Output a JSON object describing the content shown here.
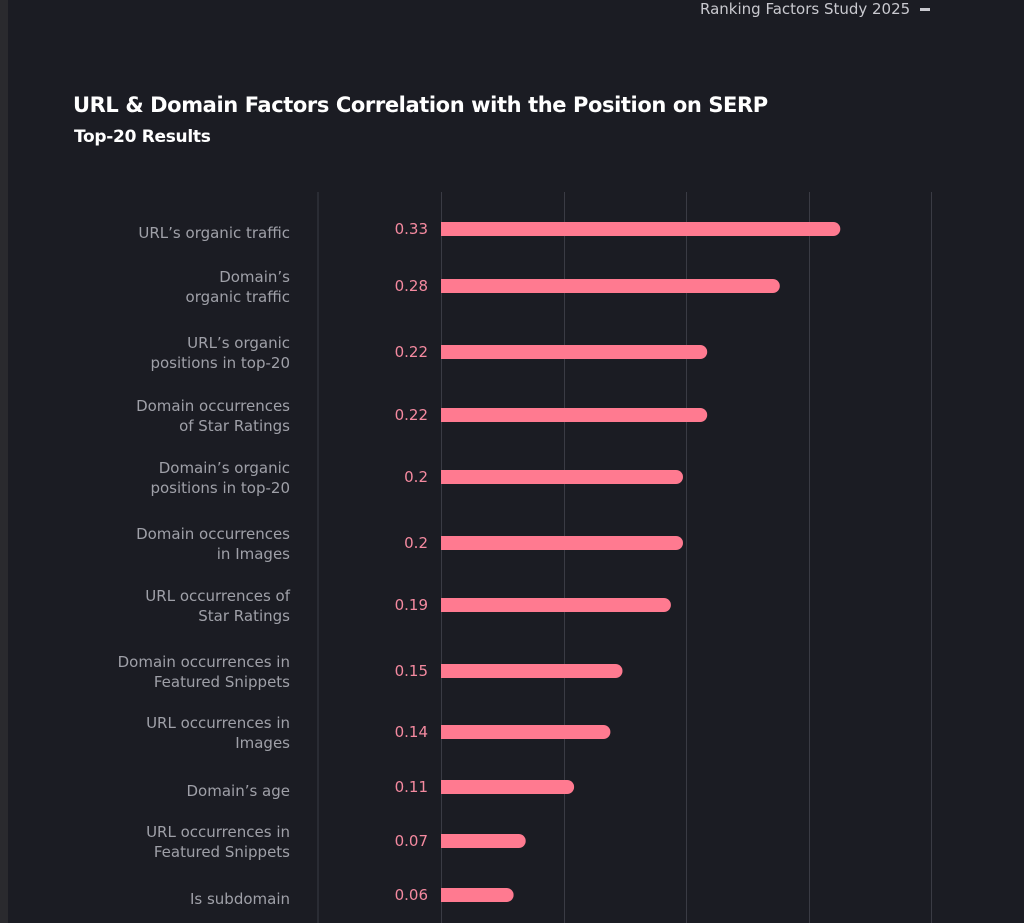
{
  "header": {
    "doc_title": "Ranking Factors Study 2025"
  },
  "chart_data": {
    "type": "bar",
    "orientation": "horizontal",
    "title": "URL & Domain Factors Correlation with the Position on SERP",
    "subtitle": "Top-20 Results",
    "categories": [
      [
        "URL’s organic traffic"
      ],
      [
        "Domain’s",
        "organic traffic"
      ],
      [
        "URL’s organic",
        "positions in top-20"
      ],
      [
        "Domain occurrences",
        "of Star Ratings"
      ],
      [
        "Domain’s organic",
        "positions in top-20"
      ],
      [
        "Domain occurrences",
        "in Images"
      ],
      [
        "URL occurrences of",
        "Star Ratings"
      ],
      [
        "Domain occurrences in",
        "Featured Snippets"
      ],
      [
        "URL occurrences in",
        "Images"
      ],
      [
        "Domain’s age"
      ],
      [
        "URL occurrences in",
        "Featured Snippets"
      ],
      [
        "Is subdomain"
      ]
    ],
    "values": [
      0.33,
      0.28,
      0.22,
      0.22,
      0.2,
      0.2,
      0.19,
      0.15,
      0.14,
      0.11,
      0.07,
      0.06
    ],
    "value_labels": [
      "0.33",
      "0.28",
      "0.22",
      "0.22",
      "0.2",
      "0.2",
      "0.19",
      "0.15",
      "0.14",
      "0.11",
      "0.07",
      "0.06"
    ],
    "xlim": [
      0,
      0.4
    ],
    "grid": true,
    "colors": {
      "bar": "#ff7a90",
      "label": "#9fa0a8",
      "value": "#f58aa0",
      "grid": "#3a3b44",
      "background": "#1b1c23"
    }
  }
}
